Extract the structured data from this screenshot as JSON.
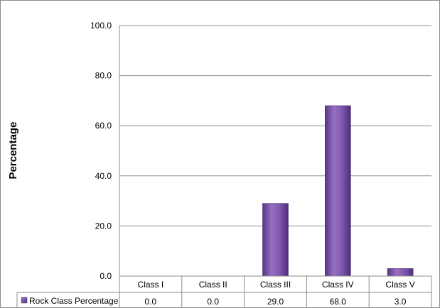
{
  "chart_data": {
    "type": "bar",
    "title": "",
    "xlabel": "",
    "ylabel": "Percentage",
    "ylim": [
      0,
      100
    ],
    "yticks": [
      "0.0",
      "20.0",
      "40.0",
      "60.0",
      "80.0",
      "100.0"
    ],
    "categories": [
      "Class I",
      "Class II",
      "Class III",
      "Class IV",
      "Class V"
    ],
    "series": [
      {
        "name": "Rock Class Percentage",
        "values": [
          0.0,
          0.0,
          29.0,
          68.0,
          3.0
        ],
        "value_labels": [
          "0.0",
          "0.0",
          "29.0",
          "68.0",
          "3.0"
        ],
        "color": "#7b4fa6"
      }
    ],
    "grid": true,
    "legend": "data-table",
    "data_table": true
  }
}
